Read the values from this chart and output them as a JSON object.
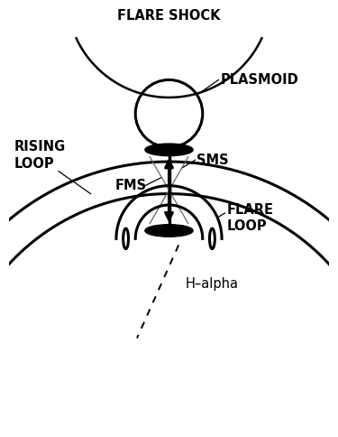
{
  "bg_color": "#ffffff",
  "labels": {
    "flare_shock": "FLARE SHOCK",
    "plasmoid": "PLASMOID",
    "rising_loop": "RISING\nLOOP",
    "fms": "FMS",
    "sms": "SMS",
    "flare_loop": "FLARE\nLOOP",
    "h_alpha": "H–alpha"
  },
  "label_fontsize": 10.5,
  "label_fontweight": "bold",
  "lw_arc": 1.8,
  "lw_tube": 2.2
}
